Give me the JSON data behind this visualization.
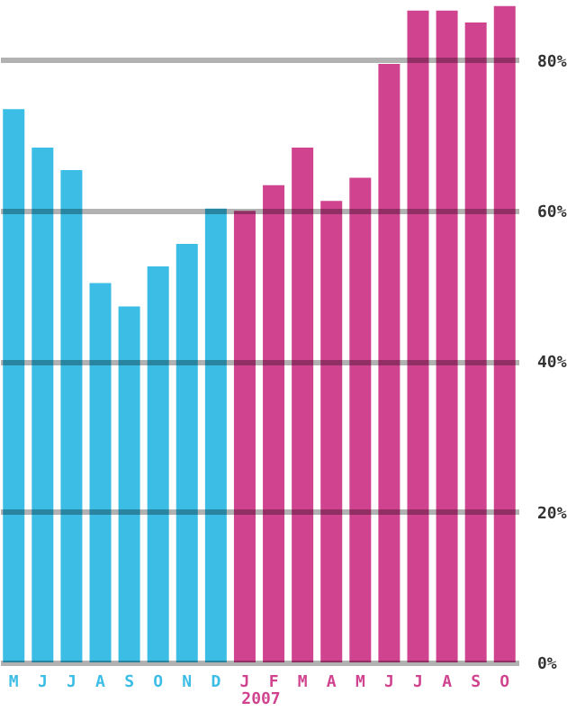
{
  "chart_data": {
    "type": "bar",
    "categories": [
      "M",
      "J",
      "J",
      "A",
      "S",
      "O",
      "N",
      "D",
      "J",
      "F",
      "M",
      "A",
      "M",
      "J",
      "J",
      "A",
      "S",
      "O"
    ],
    "series": [
      {
        "color": "#3cbde6",
        "values": [
          73.5,
          68.4,
          65.4,
          50.4,
          47.3,
          52.6,
          55.6,
          60.3,
          null,
          null,
          null,
          null,
          null,
          null,
          null,
          null,
          null,
          null
        ]
      },
      {
        "color": "#d0438f",
        "values": [
          null,
          null,
          null,
          null,
          null,
          null,
          null,
          null,
          60,
          63.4,
          68.4,
          61.3,
          64.4,
          79.5,
          86.6,
          86.6,
          85,
          87.2
        ]
      }
    ],
    "ylim": [
      0,
      88
    ],
    "yticks": [
      {
        "value": 0,
        "label": "0%"
      },
      {
        "value": 20,
        "label": "20%"
      },
      {
        "value": 40,
        "label": "40%"
      },
      {
        "value": 60,
        "label": "60%"
      },
      {
        "value": 80,
        "label": "80%"
      }
    ],
    "grid": "y",
    "annotations": [
      "2007"
    ]
  }
}
